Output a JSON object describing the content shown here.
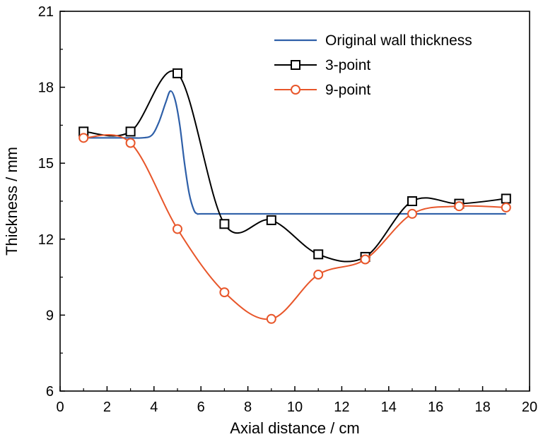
{
  "chart_data": {
    "type": "line",
    "xlabel": "Axial distance / cm",
    "ylabel": "Thickness / mm",
    "xlim": [
      0,
      20
    ],
    "ylim": [
      6,
      21
    ],
    "x_ticks": [
      0,
      2,
      4,
      6,
      8,
      10,
      12,
      14,
      16,
      18,
      20
    ],
    "y_ticks": [
      6,
      9,
      12,
      15,
      18,
      21
    ],
    "x_tick_labels": [
      "0",
      "2",
      "4",
      "6",
      "8",
      "10",
      "12",
      "14",
      "16",
      "18",
      "20"
    ],
    "y_tick_labels": [
      "6",
      "9",
      "12",
      "15",
      "18",
      "21"
    ],
    "grid": false,
    "legend_position": "top-right",
    "series": [
      {
        "name": "Original wall thickness",
        "color": "#2e5fa8",
        "marker": "none",
        "x": [
          1,
          2,
          3,
          3.5,
          3.9,
          4.2,
          4.5,
          4.7,
          4.9,
          5.1,
          5.3,
          5.5,
          5.7,
          5.85,
          6,
          7,
          10,
          13,
          16,
          19
        ],
        "y": [
          16.0,
          16.0,
          16.0,
          16.0,
          16.1,
          16.6,
          17.4,
          17.85,
          17.5,
          16.5,
          15.0,
          13.8,
          13.15,
          13.0,
          13.0,
          13.0,
          13.0,
          13.0,
          13.0,
          13.0
        ]
      },
      {
        "name": "3-point",
        "color": "#000000",
        "marker": "square",
        "x": [
          1,
          3,
          5,
          7,
          9,
          11,
          13,
          15,
          17,
          19
        ],
        "y": [
          16.25,
          16.25,
          18.55,
          12.6,
          12.75,
          11.4,
          11.3,
          13.5,
          13.4,
          13.6
        ]
      },
      {
        "name": "9-point",
        "color": "#e8562a",
        "marker": "circle",
        "x": [
          1,
          3,
          5,
          7,
          9,
          11,
          13,
          15,
          17,
          19
        ],
        "y": [
          16.0,
          15.8,
          12.4,
          9.9,
          8.85,
          10.6,
          11.2,
          13.0,
          13.3,
          13.25
        ]
      }
    ]
  }
}
